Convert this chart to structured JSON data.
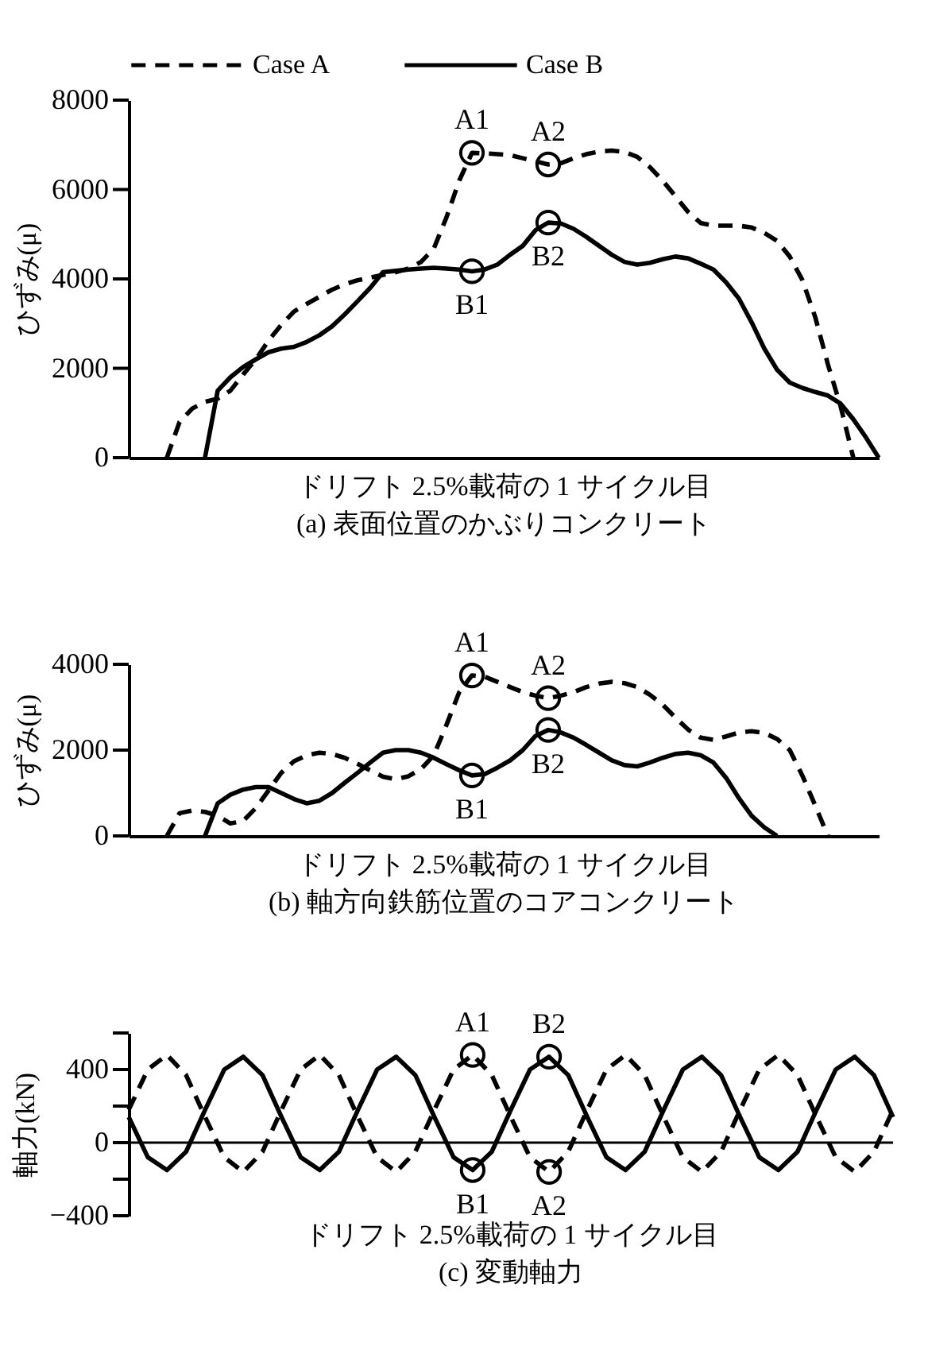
{
  "chart_data": [
    {
      "type": "line",
      "title": "(a) 表面位置のかぶりコンクリート",
      "xlabel": "ドリフト 2.5%載荷の 1 サイクル目",
      "ylabel": "ひずみ(μ)",
      "legend": "top",
      "categories": [
        null,
        null,
        null,
        null,
        null,
        null,
        null,
        null,
        null,
        null,
        null,
        null,
        null,
        null,
        null,
        null,
        null,
        null,
        null,
        null,
        null,
        null,
        null,
        null,
        null,
        null,
        null,
        null,
        null,
        null,
        null,
        null,
        null,
        null,
        null,
        null,
        null,
        null,
        null,
        null,
        null,
        null,
        null,
        null,
        null,
        null,
        null,
        null,
        null,
        null,
        null,
        null,
        null,
        null,
        null,
        null,
        null,
        null,
        null,
        null
      ],
      "ylim": [
        0,
        8000
      ],
      "yticks": [
        0,
        2000,
        4000,
        6000,
        8000
      ],
      "series": [
        {
          "name": "Case A",
          "color": "#000000",
          "line_style": "dashed",
          "values": [
            null,
            null,
            null,
            0,
            800,
            1100,
            1250,
            1320,
            1500,
            1860,
            2200,
            2620,
            2970,
            3270,
            3440,
            3600,
            3760,
            3880,
            3970,
            4030,
            4090,
            4150,
            4230,
            4380,
            4680,
            5380,
            6200,
            6820,
            6810,
            6790,
            6770,
            6700,
            6630,
            6560,
            6590,
            6700,
            6790,
            6850,
            6870,
            6840,
            6730,
            6500,
            6200,
            5850,
            5500,
            5250,
            5190,
            5190,
            5190,
            5150,
            5030,
            4850,
            4500,
            3970,
            3150,
            2090,
            1150,
            0,
            null,
            null
          ]
        },
        {
          "name": "Case B",
          "color": "#000000",
          "line_style": "solid",
          "values": [
            null,
            null,
            null,
            null,
            null,
            null,
            0,
            1500,
            1800,
            2030,
            2200,
            2360,
            2440,
            2480,
            2590,
            2740,
            2940,
            3210,
            3500,
            3800,
            4150,
            4180,
            4210,
            4230,
            4250,
            4230,
            4210,
            4170,
            4210,
            4320,
            4540,
            4740,
            5090,
            5260,
            5240,
            5120,
            4940,
            4740,
            4540,
            4380,
            4320,
            4360,
            4440,
            4500,
            4460,
            4340,
            4210,
            3920,
            3560,
            3030,
            2440,
            1970,
            1680,
            1560,
            1470,
            1390,
            1210,
            860,
            450,
            0
          ]
        }
      ],
      "annotations": [
        {
          "text": "A1",
          "y": 6820
        },
        {
          "text": "A2",
          "y": 6560
        },
        {
          "text": "B1",
          "y": 4170
        },
        {
          "text": "B2",
          "y": 5260
        }
      ]
    },
    {
      "type": "line",
      "title": "(b) 軸方向鉄筋位置のコアコンクリート",
      "xlabel": "ドリフト 2.5%載荷の 1 サイクル目",
      "ylabel": "ひずみ(μ)",
      "categories": [
        null,
        null,
        null,
        null,
        null,
        null,
        null,
        null,
        null,
        null,
        null,
        null,
        null,
        null,
        null,
        null,
        null,
        null,
        null,
        null,
        null,
        null,
        null,
        null,
        null,
        null,
        null,
        null,
        null,
        null,
        null,
        null,
        null,
        null,
        null,
        null,
        null,
        null,
        null,
        null,
        null,
        null,
        null,
        null,
        null,
        null,
        null,
        null,
        null,
        null,
        null,
        null,
        null,
        null,
        null,
        null,
        null,
        null,
        null,
        null
      ],
      "ylim": [
        0,
        4000
      ],
      "yticks": [
        0,
        2000,
        4000
      ],
      "series": [
        {
          "color": "#000000",
          "line_style": "dashed",
          "values": [
            null,
            null,
            null,
            0,
            530,
            590,
            560,
            470,
            290,
            350,
            650,
            1060,
            1470,
            1740,
            1880,
            1940,
            1910,
            1820,
            1680,
            1530,
            1380,
            1320,
            1390,
            1560,
            1880,
            2590,
            3350,
            3740,
            3710,
            3590,
            3470,
            3350,
            3270,
            3210,
            3270,
            3350,
            3470,
            3550,
            3590,
            3560,
            3470,
            3290,
            3060,
            2760,
            2480,
            2290,
            2240,
            2320,
            2410,
            2440,
            2400,
            2260,
            2000,
            1400,
            710,
            0,
            null,
            null,
            null,
            null
          ]
        },
        {
          "color": "#000000",
          "line_style": "solid",
          "values": [
            null,
            null,
            null,
            null,
            null,
            null,
            0,
            760,
            960,
            1080,
            1140,
            1140,
            1000,
            860,
            760,
            820,
            1000,
            1240,
            1470,
            1710,
            1940,
            2000,
            2000,
            1940,
            1820,
            1670,
            1530,
            1410,
            1440,
            1590,
            1760,
            2000,
            2330,
            2470,
            2410,
            2290,
            2120,
            1940,
            1760,
            1650,
            1620,
            1710,
            1820,
            1910,
            1940,
            1880,
            1710,
            1350,
            880,
            470,
            200,
            0,
            null,
            null,
            null,
            null,
            null,
            null,
            null,
            null
          ]
        }
      ],
      "annotations": [
        {
          "text": "A1",
          "y": 3740
        },
        {
          "text": "A2",
          "y": 3210
        },
        {
          "text": "B1",
          "y": 1410
        },
        {
          "text": "B2",
          "y": 2470
        }
      ]
    },
    {
      "type": "line",
      "title": "(c) 変動軸力",
      "xlabel": "ドリフト 2.5%載荷の 1 サイクル目",
      "ylabel": "軸力(kN)",
      "categories": [
        null,
        null,
        null,
        null,
        null,
        null,
        null,
        null,
        null,
        null,
        null,
        null,
        null,
        null,
        null,
        null,
        null,
        null,
        null,
        null,
        null,
        null,
        null,
        null,
        null,
        null,
        null,
        null,
        null,
        null,
        null,
        null,
        null,
        null,
        null,
        null,
        null,
        null,
        null,
        null,
        null
      ],
      "ylim": [
        -400,
        600
      ],
      "yticks": [
        {
          "value": -400,
          "label": "−400"
        },
        {
          "value": -200,
          "label": null
        },
        0,
        {
          "value": 200,
          "label": null
        },
        400,
        {
          "value": 600,
          "label": null
        }
      ],
      "series": [
        {
          "color": "#000000",
          "line_style": "dashed",
          "values": [
            180,
            400,
            480,
            370,
            140,
            -80,
            -160,
            -50,
            180,
            400,
            480,
            370,
            140,
            -80,
            -160,
            -50,
            180,
            400,
            480,
            370,
            140,
            -80,
            -160,
            -50,
            180,
            400,
            480,
            370,
            140,
            -80,
            -160,
            -50,
            180,
            400,
            480,
            370,
            140,
            -80,
            -160,
            -50,
            180
          ]
        },
        {
          "color": "#000000",
          "line_style": "solid",
          "values": [
            140,
            -80,
            -150,
            -50,
            180,
            400,
            470,
            370,
            140,
            -80,
            -150,
            -50,
            180,
            400,
            470,
            370,
            140,
            -80,
            -150,
            -50,
            180,
            400,
            470,
            370,
            140,
            -80,
            -150,
            -50,
            180,
            400,
            470,
            370,
            140,
            -80,
            -150,
            -50,
            180,
            400,
            470,
            370,
            140
          ]
        }
      ],
      "ref_lines": [
        {
          "axis": "y",
          "value": 0,
          "color": "#000000"
        }
      ],
      "annotations": [
        {
          "text": "A1",
          "y": 480
        },
        {
          "text": "B1",
          "y": -150
        },
        {
          "text": "B2",
          "y": 470
        },
        {
          "text": "A2",
          "y": -160
        }
      ]
    }
  ]
}
